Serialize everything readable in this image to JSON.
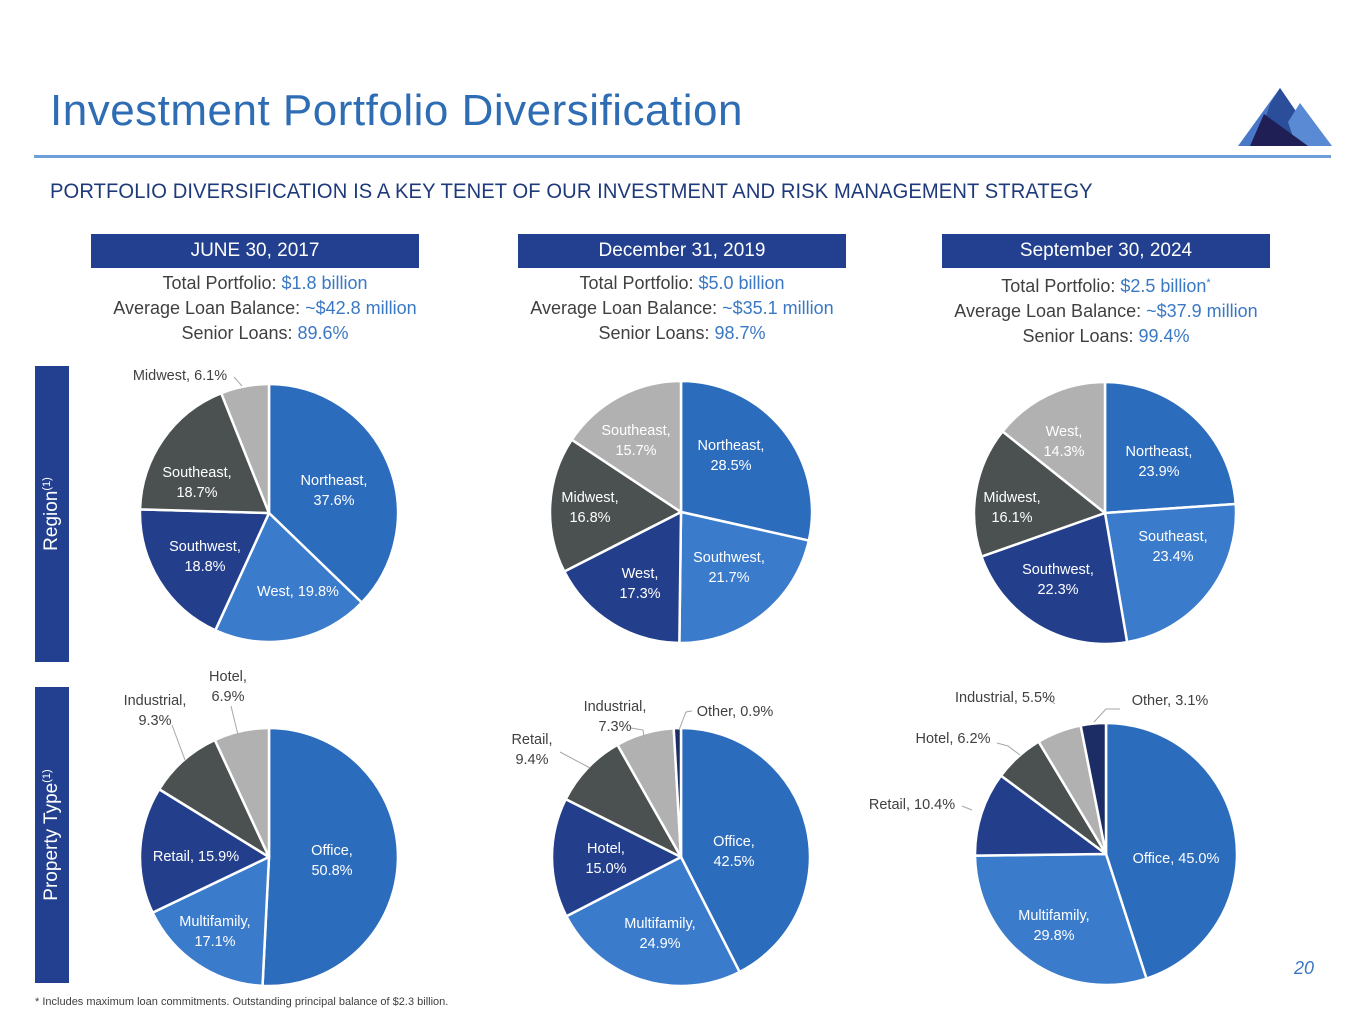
{
  "slide": {
    "title": "Investment Portfolio Diversification",
    "subtitle": "PORTFOLIO DIVERSIFICATION IS A KEY TENET OF OUR INVESTMENT AND RISK MANAGEMENT STRATEGY",
    "footnote": "* Includes maximum loan commitments. Outstanding principal balance of $2.3 billion.",
    "page_number": "20",
    "logo": "mountain-logo-icon"
  },
  "colors": {
    "title": "#2e6db4",
    "header_bg": "#22408f",
    "value_text": "#3a78c4",
    "slice_primary_blue": "#2c6cbd",
    "slice_light_blue": "#3a7bcc",
    "slice_navy": "#233f8c",
    "slice_dark_gray": "#4a5150",
    "slice_light_gray": "#b1b1b1",
    "slice_deep_navy": "#1b2d64"
  },
  "row_labels": {
    "region": {
      "text": "Region",
      "sup": "(1)"
    },
    "property_type": {
      "text": "Property Type",
      "sup": "(1)"
    }
  },
  "columns": [
    {
      "header": "JUNE 30, 2017",
      "total_label": "Total Portfolio: ",
      "total_value": "$1.8 billion",
      "total_note": "",
      "avg_label": "Average Loan Balance: ",
      "avg_value": "~$42.8 million",
      "senior_label": "Senior Loans: ",
      "senior_value": "89.6%"
    },
    {
      "header": "December 31, 2019",
      "total_label": "Total Portfolio: ",
      "total_value": "$5.0 billion",
      "total_note": "",
      "avg_label": "Average Loan Balance: ",
      "avg_value": "~$35.1 million",
      "senior_label": "Senior Loans: ",
      "senior_value": "98.7%"
    },
    {
      "header": "September 30, 2024",
      "total_label": "Total Portfolio: ",
      "total_value": "$2.5 billion",
      "total_note": "*",
      "avg_label": "Average Loan Balance: ",
      "avg_value": "~$37.9 million",
      "senior_label": "Senior Loans: ",
      "senior_value": "99.4%"
    }
  ],
  "chart_data": [
    {
      "type": "pie",
      "title": "Region - June 30, 2017",
      "start": "12 o'clock clockwise",
      "slices": [
        {
          "label": "Northeast",
          "value": 37.6,
          "color": "#2c6cbd",
          "text": [
            "Northeast,",
            "37.6%"
          ],
          "inside": true
        },
        {
          "label": "West",
          "value": 19.8,
          "color": "#3a7bcc",
          "text": [
            "West, 19.8%"
          ],
          "inside": true
        },
        {
          "label": "Southwest",
          "value": 18.8,
          "color": "#233f8c",
          "text": [
            "Southwest,",
            "18.8%"
          ],
          "inside": true
        },
        {
          "label": "Southeast",
          "value": 18.7,
          "color": "#4a5150",
          "text": [
            "Southeast,",
            "18.7%"
          ],
          "inside": true
        },
        {
          "label": "Midwest",
          "value": 6.1,
          "color": "#b1b1b1",
          "text": [
            "Midwest, 6.1%"
          ],
          "inside": false
        }
      ]
    },
    {
      "type": "pie",
      "title": "Region - December 31, 2019",
      "start": "12 o'clock clockwise",
      "slices": [
        {
          "label": "Northeast",
          "value": 28.5,
          "color": "#2c6cbd",
          "text": [
            "Northeast,",
            "28.5%"
          ],
          "inside": true
        },
        {
          "label": "Southwest",
          "value": 21.7,
          "color": "#3a7bcc",
          "text": [
            "Southwest,",
            "21.7%"
          ],
          "inside": true
        },
        {
          "label": "West",
          "value": 17.3,
          "color": "#233f8c",
          "text": [
            "West,",
            "17.3%"
          ],
          "inside": true
        },
        {
          "label": "Midwest",
          "value": 16.8,
          "color": "#4a5150",
          "text": [
            "Midwest,",
            "16.8%"
          ],
          "inside": true
        },
        {
          "label": "Southeast",
          "value": 15.7,
          "color": "#b1b1b1",
          "text": [
            "Southeast,",
            "15.7%"
          ],
          "inside": true
        }
      ]
    },
    {
      "type": "pie",
      "title": "Region - September 30, 2024",
      "start": "12 o'clock clockwise",
      "slices": [
        {
          "label": "Northeast",
          "value": 23.9,
          "color": "#2c6cbd",
          "text": [
            "Northeast,",
            "23.9%"
          ],
          "inside": true
        },
        {
          "label": "Southeast",
          "value": 23.4,
          "color": "#3a7bcc",
          "text": [
            "Southeast,",
            "23.4%"
          ],
          "inside": true
        },
        {
          "label": "Southwest",
          "value": 22.3,
          "color": "#233f8c",
          "text": [
            "Southwest,",
            "22.3%"
          ],
          "inside": true
        },
        {
          "label": "Midwest",
          "value": 16.1,
          "color": "#4a5150",
          "text": [
            "Midwest,",
            "16.1%"
          ],
          "inside": true
        },
        {
          "label": "West",
          "value": 14.3,
          "color": "#b1b1b1",
          "text": [
            "West,",
            "14.3%"
          ],
          "inside": true
        }
      ]
    },
    {
      "type": "pie",
      "title": "Property Type - June 30, 2017",
      "start": "12 o'clock clockwise",
      "slices": [
        {
          "label": "Office",
          "value": 50.8,
          "color": "#2c6cbd",
          "text": [
            "Office,",
            "50.8%"
          ],
          "inside": true
        },
        {
          "label": "Multifamily",
          "value": 17.1,
          "color": "#3a7bcc",
          "text": [
            "Multifamily,",
            "17.1%"
          ],
          "inside": true
        },
        {
          "label": "Retail",
          "value": 15.9,
          "color": "#233f8c",
          "text": [
            "Retail, 15.9%"
          ],
          "inside": true
        },
        {
          "label": "Industrial",
          "value": 9.3,
          "color": "#4a5150",
          "text": [
            "Industrial,",
            "9.3%"
          ],
          "inside": false
        },
        {
          "label": "Hotel",
          "value": 6.9,
          "color": "#b1b1b1",
          "text": [
            "Hotel,",
            "6.9%"
          ],
          "inside": false
        }
      ]
    },
    {
      "type": "pie",
      "title": "Property Type - December 31, 2019",
      "start": "12 o'clock clockwise",
      "slices": [
        {
          "label": "Office",
          "value": 42.5,
          "color": "#2c6cbd",
          "text": [
            "Office,",
            "42.5%"
          ],
          "inside": true
        },
        {
          "label": "Multifamily",
          "value": 24.9,
          "color": "#3a7bcc",
          "text": [
            "Multifamily,",
            "24.9%"
          ],
          "inside": true
        },
        {
          "label": "Hotel",
          "value": 15.0,
          "color": "#233f8c",
          "text": [
            "Hotel,",
            "15.0%"
          ],
          "inside": true
        },
        {
          "label": "Retail",
          "value": 9.4,
          "color": "#4a5150",
          "text": [
            "Retail,",
            "9.4%"
          ],
          "inside": false
        },
        {
          "label": "Industrial",
          "value": 7.3,
          "color": "#b1b1b1",
          "text": [
            "Industrial,",
            "7.3%"
          ],
          "inside": false
        },
        {
          "label": "Other",
          "value": 0.9,
          "color": "#1b2d64",
          "text": [
            "Other, 0.9%"
          ],
          "inside": false
        }
      ]
    },
    {
      "type": "pie",
      "title": "Property Type - September 30, 2024",
      "start": "12 o'clock clockwise",
      "slices": [
        {
          "label": "Office",
          "value": 45.0,
          "color": "#2c6cbd",
          "text": [
            "Office, 45.0%"
          ],
          "inside": true
        },
        {
          "label": "Multifamily",
          "value": 29.8,
          "color": "#3a7bcc",
          "text": [
            "Multifamily,",
            "29.8%"
          ],
          "inside": true
        },
        {
          "label": "Retail",
          "value": 10.4,
          "color": "#233f8c",
          "text": [
            "Retail, 10.4%"
          ],
          "inside": false
        },
        {
          "label": "Hotel",
          "value": 6.2,
          "color": "#4a5150",
          "text": [
            "Hotel, 6.2%"
          ],
          "inside": false
        },
        {
          "label": "Industrial",
          "value": 5.5,
          "color": "#b1b1b1",
          "text": [
            "Industrial, 5.5%"
          ],
          "inside": false
        },
        {
          "label": "Other",
          "value": 3.1,
          "color": "#1b2d64",
          "text": [
            "Other, 3.1%"
          ],
          "inside": false
        }
      ]
    }
  ]
}
